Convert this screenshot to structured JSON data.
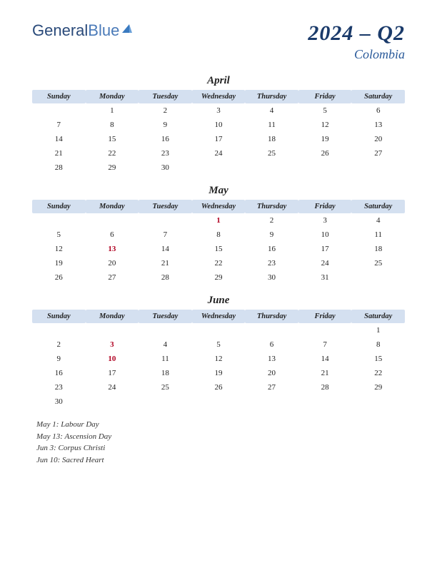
{
  "logo": {
    "text1": "General",
    "text2": "Blue"
  },
  "title": {
    "main": "2024 – Q2",
    "sub": "Colombia"
  },
  "day_headers": [
    "Sunday",
    "Monday",
    "Tuesday",
    "Wednesday",
    "Thursday",
    "Friday",
    "Saturday"
  ],
  "colors": {
    "header_bg": "#d4e0f0",
    "title_color": "#1a3a6a",
    "subtitle_color": "#2a5a9a",
    "holiday_color": "#b00020",
    "text_color": "#222222",
    "background": "#ffffff"
  },
  "months": [
    {
      "name": "April",
      "weeks": [
        [
          "",
          "1",
          "2",
          "3",
          "4",
          "5",
          "6"
        ],
        [
          "7",
          "8",
          "9",
          "10",
          "11",
          "12",
          "13"
        ],
        [
          "14",
          "15",
          "16",
          "17",
          "18",
          "19",
          "20"
        ],
        [
          "21",
          "22",
          "23",
          "24",
          "25",
          "26",
          "27"
        ],
        [
          "28",
          "29",
          "30",
          "",
          "",
          "",
          ""
        ]
      ],
      "holidays": []
    },
    {
      "name": "May",
      "weeks": [
        [
          "",
          "",
          "",
          "1",
          "2",
          "3",
          "4"
        ],
        [
          "5",
          "6",
          "7",
          "8",
          "9",
          "10",
          "11"
        ],
        [
          "12",
          "13",
          "14",
          "15",
          "16",
          "17",
          "18"
        ],
        [
          "19",
          "20",
          "21",
          "22",
          "23",
          "24",
          "25"
        ],
        [
          "26",
          "27",
          "28",
          "29",
          "30",
          "31",
          ""
        ]
      ],
      "holidays": [
        "1",
        "13"
      ]
    },
    {
      "name": "June",
      "weeks": [
        [
          "",
          "",
          "",
          "",
          "",
          "",
          "1"
        ],
        [
          "2",
          "3",
          "4",
          "5",
          "6",
          "7",
          "8"
        ],
        [
          "9",
          "10",
          "11",
          "12",
          "13",
          "14",
          "15"
        ],
        [
          "16",
          "17",
          "18",
          "19",
          "20",
          "21",
          "22"
        ],
        [
          "23",
          "24",
          "25",
          "26",
          "27",
          "28",
          "29"
        ],
        [
          "30",
          "",
          "",
          "",
          "",
          "",
          ""
        ]
      ],
      "holidays": [
        "3",
        "10"
      ]
    }
  ],
  "holiday_list": [
    "May 1: Labour Day",
    "May 13: Ascension Day",
    "Jun 3: Corpus Christi",
    "Jun 10: Sacred Heart"
  ]
}
